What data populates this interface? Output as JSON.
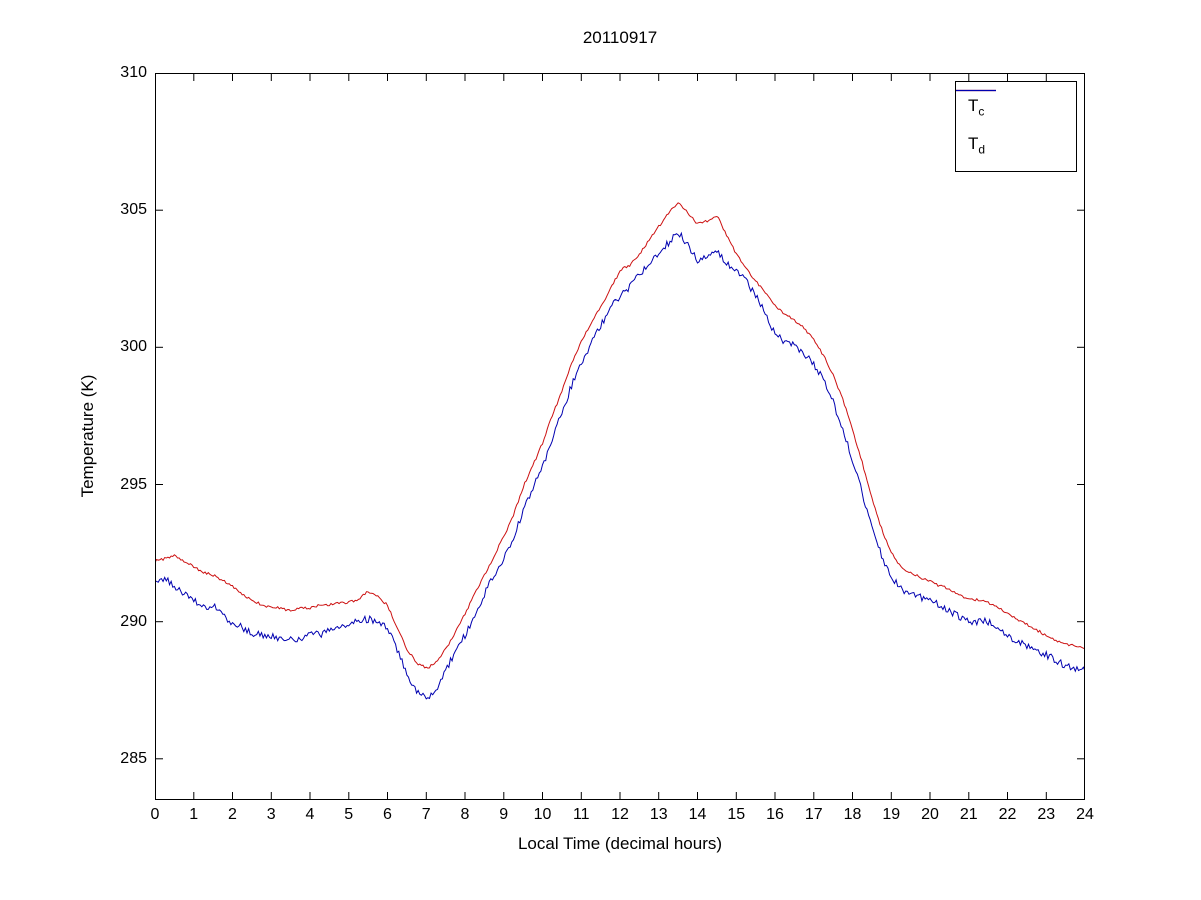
{
  "figure": {
    "background": "#ffffff",
    "axis_color": "#000000"
  },
  "chart_data": {
    "type": "line",
    "title": "20110917",
    "xlabel": "Local Time (decimal hours)",
    "ylabel": "Temperature (K)",
    "xlim": [
      0,
      24
    ],
    "ylim": [
      283.5,
      310
    ],
    "xticks": [
      0,
      1,
      2,
      3,
      4,
      5,
      6,
      7,
      8,
      9,
      10,
      11,
      12,
      13,
      14,
      15,
      16,
      17,
      18,
      19,
      20,
      21,
      22,
      23,
      24
    ],
    "yticks": [
      285,
      290,
      295,
      300,
      305,
      310
    ],
    "grid": false,
    "legend_position": "top-right",
    "x_start": 0,
    "x_step_hours": 0.25,
    "series": [
      {
        "name": "T_c",
        "label_main": "T",
        "label_sub": "c",
        "color": "#cc1111",
        "noise_amplitude": 0.05,
        "values": [
          292.2,
          292.3,
          292.4,
          292.2,
          292.0,
          291.8,
          291.7,
          291.5,
          291.3,
          291.0,
          290.8,
          290.6,
          290.5,
          290.5,
          290.4,
          290.5,
          290.5,
          290.6,
          290.6,
          290.7,
          290.7,
          290.8,
          291.1,
          290.9,
          290.6,
          289.8,
          289.0,
          288.5,
          288.3,
          288.5,
          289.0,
          289.6,
          290.3,
          291.0,
          291.7,
          292.4,
          293.1,
          293.9,
          294.9,
          295.7,
          296.5,
          297.5,
          298.4,
          299.4,
          300.2,
          300.9,
          301.5,
          302.1,
          302.8,
          303.0,
          303.4,
          303.9,
          304.4,
          304.9,
          305.3,
          304.9,
          304.5,
          304.6,
          304.8,
          304.1,
          303.4,
          302.9,
          302.4,
          302.0,
          301.5,
          301.2,
          301.0,
          300.7,
          300.3,
          299.7,
          299.0,
          298.1,
          297.0,
          295.8,
          294.5,
          293.4,
          292.5,
          292.0,
          291.8,
          291.6,
          291.5,
          291.3,
          291.2,
          291.0,
          290.8,
          290.8,
          290.7,
          290.5,
          290.3,
          290.1,
          289.9,
          289.7,
          289.5,
          289.3,
          289.2,
          289.1,
          289.0
        ]
      },
      {
        "name": "T_d",
        "label_main": "T",
        "label_sub": "d",
        "color": "#0000b0",
        "noise_amplitude": 0.13,
        "values": [
          291.5,
          291.6,
          291.3,
          291.0,
          290.8,
          290.5,
          290.6,
          290.2,
          289.9,
          289.8,
          289.6,
          289.5,
          289.5,
          289.4,
          289.4,
          289.3,
          289.6,
          289.5,
          289.7,
          289.8,
          289.9,
          290.0,
          290.1,
          290.0,
          289.8,
          289.0,
          288.1,
          287.5,
          287.2,
          287.5,
          288.2,
          288.9,
          289.5,
          290.2,
          291.0,
          291.7,
          292.3,
          293.1,
          294.0,
          294.9,
          295.6,
          296.7,
          297.6,
          298.6,
          299.4,
          300.1,
          300.8,
          301.4,
          301.9,
          302.2,
          302.7,
          303.0,
          303.4,
          303.8,
          304.2,
          303.7,
          303.2,
          303.3,
          303.5,
          303.1,
          302.8,
          302.4,
          301.9,
          301.2,
          300.5,
          300.2,
          300.1,
          299.8,
          299.4,
          298.8,
          298.0,
          297.0,
          295.9,
          294.7,
          293.5,
          292.4,
          291.6,
          291.2,
          291.0,
          290.9,
          290.8,
          290.6,
          290.4,
          290.2,
          290.0,
          290.0,
          290.0,
          289.8,
          289.5,
          289.3,
          289.1,
          288.9,
          288.8,
          288.6,
          288.4,
          288.3,
          288.2
        ]
      }
    ]
  }
}
